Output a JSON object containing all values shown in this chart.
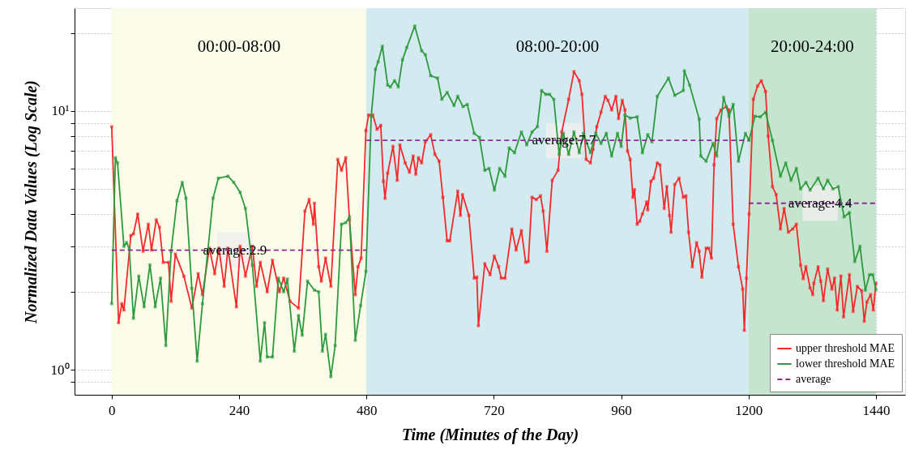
{
  "chart_data": {
    "type": "line",
    "xlabel": "Time (Minutes of the Day)",
    "ylabel": "Normalized Data Values (Log Scale)",
    "xlim": [
      -70,
      1495
    ],
    "xticks": [
      0,
      240,
      480,
      720,
      960,
      1200,
      1440
    ],
    "ylim": [
      0.8,
      25
    ],
    "yticks": [
      {
        "value": 0.9,
        "label": null
      },
      {
        "value": 1,
        "label": "10⁰"
      },
      {
        "value": 2,
        "label": null
      },
      {
        "value": 3,
        "label": null
      },
      {
        "value": 4,
        "label": null
      },
      {
        "value": 5,
        "label": null
      },
      {
        "value": 6,
        "label": null
      },
      {
        "value": 7,
        "label": null
      },
      {
        "value": 8,
        "label": null
      },
      {
        "value": 9,
        "label": null
      },
      {
        "value": 10,
        "label": "10¹"
      },
      {
        "value": 20,
        "label": null
      }
    ],
    "log": "y",
    "grid": true,
    "legend": "bottom right",
    "line_style": "solid",
    "bands": [
      {
        "axis": "x",
        "from": 0,
        "to": 480,
        "label": "00:00-08:00",
        "color": "#fbfbea"
      },
      {
        "axis": "x",
        "from": 480,
        "to": 1200,
        "label": "08:00-20:00",
        "color": "#d2eaf0"
      },
      {
        "axis": "x",
        "from": 1200,
        "to": 1440,
        "label": "20:00-24:00",
        "color": "#c6e5cf"
      }
    ],
    "annotations": [
      {
        "text": "average:2.9",
        "x": 232,
        "y": 2.9
      },
      {
        "text": "average:7.7",
        "x": 852,
        "y": 7.7
      },
      {
        "text": "average:4.4",
        "x": 1335,
        "y": 4.4
      }
    ],
    "series": [
      {
        "name": "upper threshold MAE",
        "color": "#f42a2a",
        "marker": "cross",
        "x": [
          0,
          13,
          19,
          23,
          36,
          41,
          49,
          59,
          69,
          75,
          84,
          90,
          97,
          107,
          112,
          120,
          136,
          151,
          163,
          171,
          184,
          194,
          202,
          212,
          219,
          235,
          242,
          252,
          265,
          273,
          280,
          293,
          303,
          316,
          324,
          336,
          352,
          364,
          372,
          380,
          382,
          390,
          395,
          403,
          413,
          426,
          433,
          441,
          448,
          459,
          464,
          470,
          479,
          484,
          492,
          500,
          507,
          512,
          515,
          520,
          530,
          538,
          543,
          553,
          561,
          568,
          573,
          578,
          584,
          591,
          601,
          609,
          617,
          624,
          632,
          637,
          652,
          657,
          661,
          673,
          683,
          688,
          691,
          703,
          713,
          721,
          729,
          734,
          741,
          754,
          762,
          772,
          780,
          785,
          792,
          800,
          808,
          813,
          820,
          830,
          841,
          848,
          861,
          871,
          881,
          886,
          894,
          902,
          907,
          914,
          922,
          930,
          935,
          942,
          950,
          955,
          962,
          967,
          972,
          977,
          982,
          985,
          990,
          995,
          1000,
          1008,
          1010,
          1016,
          1021,
          1028,
          1033,
          1041,
          1046,
          1051,
          1054,
          1061,
          1069,
          1077,
          1082,
          1087,
          1094,
          1102,
          1107,
          1112,
          1120,
          1125,
          1130,
          1135,
          1140,
          1148,
          1158,
          1163,
          1171,
          1181,
          1189,
          1192,
          1196,
          1201,
          1209,
          1217,
          1224,
          1232,
          1237,
          1245,
          1252,
          1260,
          1267,
          1275,
          1283,
          1290,
          1298,
          1303,
          1308,
          1316,
          1321,
          1323,
          1331,
          1336,
          1341,
          1349,
          1357,
          1362,
          1367,
          1374,
          1379,
          1390,
          1397,
          1405,
          1413,
          1418,
          1423,
          1430,
          1435,
          1440
        ],
        "values": [
          8.7,
          1.52,
          1.8,
          1.7,
          3.3,
          3.35,
          4.0,
          2.87,
          3.65,
          2.9,
          3.8,
          3.55,
          2.6,
          2.6,
          1.84,
          2.8,
          2.3,
          1.73,
          2.35,
          1.95,
          2.95,
          2.35,
          2.95,
          2.1,
          2.95,
          1.75,
          3.0,
          2.3,
          3.0,
          2.1,
          2.6,
          2.0,
          2.65,
          2.0,
          2.26,
          1.84,
          1.73,
          4.1,
          4.55,
          3.65,
          4.4,
          2.5,
          2.2,
          2.7,
          2.1,
          6.5,
          5.9,
          6.6,
          3.8,
          1.95,
          2.5,
          2.7,
          8.4,
          9.65,
          9.65,
          8.5,
          8.8,
          5.35,
          4.6,
          5.75,
          7.3,
          5.4,
          7.4,
          6.3,
          5.8,
          6.7,
          5.7,
          6.6,
          6.3,
          7.6,
          8.1,
          6.8,
          6.4,
          4.64,
          3.15,
          3.15,
          4.9,
          3.95,
          4.75,
          3.95,
          2.26,
          2.28,
          1.48,
          2.57,
          2.33,
          2.75,
          2.5,
          2.26,
          2.26,
          3.5,
          2.9,
          3.45,
          2.6,
          2.62,
          4.64,
          4.55,
          4.7,
          4.1,
          2.87,
          5.4,
          5.9,
          8.3,
          11.1,
          14.2,
          13.1,
          11.6,
          6.5,
          6.3,
          7.1,
          8.7,
          9.9,
          11.4,
          11.0,
          10.1,
          11.4,
          9.35,
          11.0,
          10.1,
          7.0,
          6.5,
          4.64,
          4.97,
          3.65,
          3.75,
          4.0,
          4.45,
          4.15,
          5.35,
          5.5,
          6.3,
          6.2,
          4.2,
          5.1,
          3.95,
          3.4,
          5.2,
          5.5,
          4.64,
          4.7,
          3.4,
          2.5,
          3.1,
          2.87,
          2.28,
          2.95,
          2.95,
          2.7,
          6.2,
          9.35,
          10.1,
          10.4,
          10.1,
          3.65,
          2.5,
          2.05,
          1.42,
          2.26,
          4.0,
          11.1,
          12.5,
          13.1,
          11.9,
          8.0,
          5.1,
          4.75,
          3.5,
          4.2,
          3.4,
          3.5,
          3.65,
          2.54,
          2.25,
          2.5,
          2.07,
          1.95,
          2.16,
          2.5,
          2.2,
          1.85,
          2.45,
          2.05,
          2.26,
          1.7,
          2.3,
          1.6,
          2.33,
          1.68,
          2.1,
          2.02,
          1.54,
          1.83,
          1.95,
          1.7,
          2.16
        ]
      },
      {
        "name": "lower threshold MAE",
        "color": "#2e9a3e",
        "marker": "cross",
        "x": [
          0,
          7,
          11,
          23,
          28,
          33,
          41,
          51,
          61,
          72,
          82,
          92,
          102,
          112,
          123,
          133,
          140,
          151,
          161,
          171,
          181,
          191,
          201,
          219,
          230,
          242,
          252,
          265,
          280,
          288,
          293,
          303,
          314,
          324,
          331,
          344,
          352,
          359,
          369,
          382,
          390,
          397,
          403,
          413,
          421,
          433,
          441,
          448,
          459,
          469,
          479,
          489,
          497,
          502,
          510,
          520,
          525,
          533,
          540,
          548,
          556,
          571,
          584,
          591,
          601,
          614,
          622,
          632,
          645,
          652,
          662,
          670,
          683,
          693,
          703,
          711,
          721,
          731,
          741,
          749,
          759,
          772,
          782,
          792,
          802,
          810,
          818,
          825,
          833,
          843,
          851,
          861,
          871,
          881,
          889,
          902,
          912,
          922,
          932,
          942,
          953,
          960,
          967,
          977,
          990,
          1000,
          1010,
          1018,
          1028,
          1049,
          1061,
          1077,
          1079,
          1089,
          1107,
          1110,
          1120,
          1133,
          1140,
          1153,
          1163,
          1171,
          1181,
          1194,
          1201,
          1212,
          1222,
          1232,
          1245,
          1260,
          1270,
          1280,
          1290,
          1298,
          1308,
          1316,
          1331,
          1341,
          1349,
          1359,
          1369,
          1380,
          1390,
          1400,
          1410,
          1420,
          1428,
          1434,
          1440
        ],
        "values": [
          1.8,
          6.6,
          6.3,
          3.0,
          3.1,
          2.95,
          1.58,
          2.3,
          1.75,
          2.54,
          1.75,
          2.26,
          1.24,
          2.87,
          4.5,
          5.3,
          4.6,
          2.06,
          1.08,
          1.8,
          2.87,
          4.6,
          5.5,
          5.6,
          5.3,
          4.85,
          4.2,
          2.54,
          1.08,
          1.52,
          1.12,
          1.12,
          2.26,
          2.0,
          2.24,
          1.18,
          1.62,
          1.36,
          2.2,
          2.03,
          2.0,
          1.18,
          1.37,
          0.94,
          1.24,
          3.65,
          3.7,
          3.9,
          1.3,
          1.77,
          2.4,
          9.55,
          14.5,
          15.5,
          17.8,
          12.6,
          12.4,
          13.1,
          12.4,
          15.8,
          17.6,
          21.3,
          17.1,
          16.5,
          13.7,
          13.4,
          11.1,
          11.8,
          10.5,
          11.4,
          10.4,
          10.6,
          8.2,
          7.9,
          5.9,
          6.0,
          4.95,
          6.0,
          5.6,
          7.2,
          6.9,
          8.3,
          7.4,
          8.3,
          8.7,
          12.0,
          11.6,
          11.6,
          11.1,
          6.8,
          8.2,
          6.8,
          8.3,
          6.9,
          8.2,
          6.9,
          8.2,
          7.5,
          8.2,
          6.7,
          8.2,
          7.3,
          9.65,
          9.4,
          9.5,
          6.9,
          8.1,
          7.6,
          11.4,
          13.4,
          11.5,
          12.0,
          14.3,
          12.6,
          9.3,
          6.7,
          6.4,
          7.5,
          6.7,
          11.3,
          9.55,
          10.6,
          6.4,
          8.2,
          7.7,
          9.55,
          9.5,
          9.9,
          7.7,
          5.6,
          6.3,
          5.4,
          6.0,
          5.0,
          5.3,
          4.95,
          5.5,
          5.0,
          5.4,
          5.0,
          5.1,
          3.9,
          4.05,
          2.62,
          3.0,
          2.03,
          2.33,
          2.33,
          2.04
        ]
      },
      {
        "name": "average",
        "color": "#8e2a96",
        "marker": "none",
        "line_style": "dashed",
        "x": [
          0,
          480
        ],
        "values": [
          2.9,
          2.9
        ]
      },
      {
        "color": "#8e2a96",
        "marker": "none",
        "line_style": "dashed",
        "x": [
          480,
          1200
        ],
        "values": [
          7.7,
          7.7
        ]
      },
      {
        "color": "#8e2a96",
        "marker": "none",
        "line_style": "dashed",
        "x": [
          1200,
          1440
        ],
        "values": [
          4.4,
          4.4
        ]
      }
    ]
  }
}
